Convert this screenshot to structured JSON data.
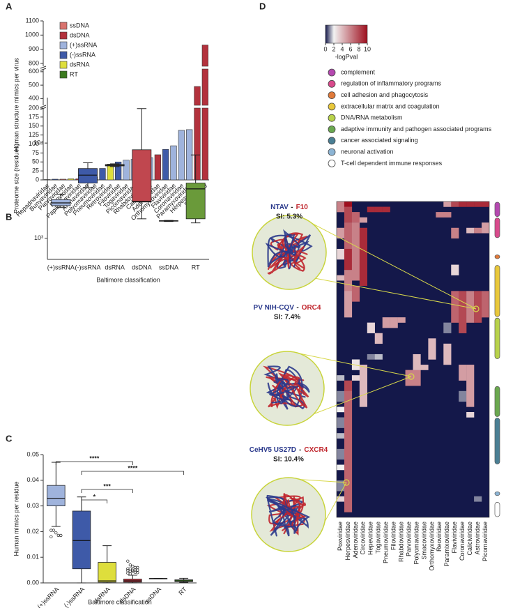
{
  "chart_data": [
    {
      "panel": "A",
      "type": "bar",
      "ylabel": "Human structure mimics per virus",
      "categories": [
        "Hepadnaviridae",
        "Bunyaviridae",
        "Parvoviridae",
        "Reoviridae",
        "Papillomaviridae",
        "Arenaviridae",
        "Polyomaviridae",
        "Pneumoviridae",
        "Retroviridae",
        "Filoviridae",
        "Togaviridae",
        "Picornaviridae",
        "Rhabdoviridae",
        "Caliciviridae",
        "Adenoviridae",
        "Orthomyxoviridae",
        "Flaviviridae",
        "Coronaviridae",
        "Paramyxoviridae",
        "Herpesviridae",
        "Poxviridae"
      ],
      "values": [
        1,
        2,
        2,
        3,
        3,
        5,
        8,
        32,
        44,
        50,
        55,
        57,
        58,
        62,
        70,
        85,
        95,
        138,
        140,
        490,
        930
      ],
      "colors": [
        "#3b7a1f",
        "#3e5aa8",
        "#d9736e",
        "#dede3c",
        "#b3323d",
        "#3e5aa8",
        "#b3323d",
        "#3e5aa8",
        "#dede3c",
        "#3e5aa8",
        "#9fb3dc",
        "#9fb3dc",
        "#3e5aa8",
        "#9fb3dc",
        "#b3323d",
        "#3e5aa8",
        "#9fb3dc",
        "#9fb3dc",
        "#9fb3dc",
        "#b3323d",
        "#b3323d"
      ],
      "legend": [
        {
          "name": "ssDNA",
          "color": "#d9736e"
        },
        {
          "name": "dsDNA",
          "color": "#b3323d"
        },
        {
          "name": "(+)ssRNA",
          "color": "#9fb3dc"
        },
        {
          "name": "(-)ssRNA",
          "color": "#3e5aa8"
        },
        {
          "name": "dsRNA",
          "color": "#dede3c"
        },
        {
          "name": "RT",
          "color": "#3b7a1f"
        }
      ],
      "axis_segments": [
        {
          "ylim": [
            0,
            200
          ],
          "yticks": [
            0,
            25,
            50,
            75,
            100,
            125,
            150,
            175,
            200
          ]
        },
        {
          "ylim": [
            350,
            620
          ],
          "yticks": [
            400,
            500,
            600
          ]
        },
        {
          "ylim": [
            780,
            1100
          ],
          "yticks": [
            800,
            900,
            1000,
            1100
          ]
        }
      ]
    },
    {
      "panel": "B",
      "type": "box",
      "ylabel": "Proteome size (residues)",
      "xlabel": "Baltimore classification",
      "categories": [
        "(+)ssRNA",
        "(-)ssRNA",
        "dsRNA",
        "dsDNA",
        "ssDNA",
        "RT"
      ],
      "colors": [
        "#9fb3dc",
        "#3e5aa8",
        "#c9c9b0",
        "#c0474f",
        "#9a9a9a",
        "#6a9a3a"
      ],
      "log_scale": true,
      "ylim": [
        600,
        30000
      ],
      "yticks": [
        {
          "value": 1000,
          "label": "10³"
        },
        {
          "value": 10000,
          "label": "10⁴"
        }
      ],
      "boxes": [
        {
          "min": 2100,
          "q1": 2200,
          "median": 2350,
          "q3": 2550,
          "max": 2900
        },
        {
          "min": 3400,
          "q1": 3800,
          "median": 4600,
          "q3": 5400,
          "max": 6200
        },
        {
          "min": 5650,
          "q1": 5750,
          "median": 5850,
          "q3": 5950,
          "max": 6050
        },
        {
          "min": 1600,
          "q1": 2400,
          "median": 2450,
          "q3": 8500,
          "max": 23000
        },
        {
          "min": 1500,
          "q1": 1510,
          "median": 1520,
          "q3": 1530,
          "max": 1540
        },
        {
          "min": 1450,
          "q1": 1600,
          "median": 3300,
          "q3": 3800,
          "max": 7500
        }
      ]
    },
    {
      "panel": "C",
      "type": "box",
      "ylabel": "Human mimics per residue",
      "xlabel": "Baltimore classification",
      "categories": [
        "(+)ssRNA",
        "(-)ssRNA",
        "dsRNA",
        "dsDNA",
        "ssDNA",
        "RT"
      ],
      "colors": [
        "#9fb3dc",
        "#3e5aa8",
        "#dede3c",
        "#b3323d",
        "#b3323d",
        "#3b7a1f"
      ],
      "ylim": [
        0,
        0.05
      ],
      "yticks": [
        {
          "value": 0,
          "label": "0.00"
        },
        0.01,
        0.02,
        0.03,
        0.04,
        0.05
      ],
      "boxes": [
        {
          "min": 0.022,
          "q1": 0.03,
          "median": 0.033,
          "q3": 0.038,
          "max": 0.047,
          "outliers": [
            0.0205,
            0.0205,
            0.0195,
            0.0185,
            0.0185,
            0.018
          ]
        },
        {
          "min": 0,
          "q1": 0.0055,
          "median": 0.0165,
          "q3": 0.028,
          "max": 0.0335,
          "outliers": []
        },
        {
          "min": 0,
          "q1": 0.0003,
          "median": 0.0008,
          "q3": 0.008,
          "max": 0.0145,
          "outliers": []
        },
        {
          "min": 0,
          "q1": 0.0003,
          "median": 0.0008,
          "q3": 0.0015,
          "max": 0.003,
          "outliers": [
            0.0085,
            0.007,
            0.0065,
            0.006,
            0.006,
            0.0055,
            0.0055,
            0.005,
            0.005,
            0.005,
            0.0048,
            0.0045,
            0.0045,
            0.0042,
            0.004,
            0.0038,
            0.0035
          ]
        },
        {
          "min": 0.0017,
          "q1": 0.0017,
          "median": 0.0017,
          "q3": 0.0017,
          "max": 0.0017,
          "outliers": []
        },
        {
          "min": 0.0002,
          "q1": 0.0005,
          "median": 0.0008,
          "q3": 0.0012,
          "max": 0.0018,
          "outliers": []
        }
      ],
      "significance": [
        {
          "from": 0,
          "to": 3,
          "label": "****"
        },
        {
          "from": 1,
          "to": 5,
          "label": "****"
        },
        {
          "from": 1,
          "to": 3,
          "label": "***"
        },
        {
          "from": 1,
          "to": 2,
          "label": "*"
        }
      ]
    },
    {
      "panel": "D",
      "type": "heatmap",
      "colorbar_label": "-logPval",
      "clim": [
        0,
        10
      ],
      "cticks": [
        0,
        2,
        4,
        6,
        8,
        10
      ],
      "colorscale": [
        [
          0,
          "#14184a"
        ],
        [
          2,
          "#f2f2f2"
        ],
        [
          10,
          "#9e0f1e"
        ]
      ],
      "columns": [
        "Poxviridae",
        "Herpesviridae",
        "Adenoviridae",
        "Circoviridae",
        "Hepeviridae",
        "Togaviridae",
        "Pneumoviridae",
        "Filoviridae",
        "Rhabdoviridae",
        "Parvoviridae",
        "Polyomaviridae",
        "Smacoviridae",
        "Orthomyxoviridae",
        "Reoviridae",
        "Paramixoviridae",
        "Flaviviridae",
        "Coronaviridae",
        "Caliciviridae",
        "Astroviridae",
        "Picornaviridae"
      ],
      "blocks": [
        [
          0,
          0,
          1,
          6
        ],
        [
          0,
          5,
          6,
          5
        ],
        [
          0,
          9,
          10,
          3
        ],
        [
          0,
          14,
          14,
          4
        ],
        [
          0,
          33,
          33,
          1.5
        ],
        [
          0,
          36,
          37,
          1
        ],
        [
          0,
          39,
          39,
          2
        ],
        [
          0,
          41,
          42,
          1
        ],
        [
          0,
          44,
          44,
          1.5
        ],
        [
          0,
          47,
          48,
          1
        ],
        [
          0,
          50,
          50,
          2
        ],
        [
          0,
          53,
          54,
          1
        ],
        [
          0,
          56,
          56,
          3
        ],
        [
          1,
          0,
          0,
          10
        ],
        [
          1,
          1,
          3,
          8
        ],
        [
          1,
          4,
          8,
          7
        ],
        [
          1,
          9,
          12,
          9
        ],
        [
          1,
          13,
          16,
          6
        ],
        [
          1,
          17,
          21,
          5
        ],
        [
          1,
          34,
          35,
          8
        ],
        [
          1,
          36,
          58,
          7
        ],
        [
          2,
          2,
          3,
          7
        ],
        [
          2,
          4,
          14,
          6
        ],
        [
          2,
          16,
          18,
          7
        ],
        [
          2,
          30,
          31,
          2.5
        ],
        [
          2,
          33,
          33,
          3
        ],
        [
          3,
          3,
          3,
          5
        ],
        [
          3,
          5,
          15,
          9
        ],
        [
          3,
          31,
          38,
          4
        ],
        [
          4,
          1,
          1,
          9
        ],
        [
          5,
          1,
          1,
          9
        ],
        [
          6,
          1,
          1,
          9
        ],
        [
          4,
          23,
          24,
          3
        ],
        [
          4,
          29,
          29,
          1
        ],
        [
          5,
          25,
          26,
          4
        ],
        [
          5,
          29,
          29,
          1.5
        ],
        [
          6,
          22,
          23,
          5
        ],
        [
          7,
          22,
          23,
          5
        ],
        [
          8,
          22,
          22,
          5
        ],
        [
          9,
          32,
          34,
          6
        ],
        [
          10,
          32,
          34,
          6
        ],
        [
          10,
          29,
          31,
          4
        ],
        [
          11,
          31,
          31,
          4
        ],
        [
          12,
          26,
          29,
          4
        ],
        [
          13,
          2,
          2,
          6
        ],
        [
          14,
          2,
          2,
          6
        ],
        [
          14,
          0,
          0,
          5
        ],
        [
          14,
          27,
          30,
          4
        ],
        [
          14,
          23,
          24,
          1
        ],
        [
          15,
          0,
          0,
          8
        ],
        [
          15,
          5,
          6,
          6
        ],
        [
          15,
          12,
          13,
          3
        ],
        [
          15,
          17,
          22,
          7
        ],
        [
          16,
          0,
          0,
          9
        ],
        [
          16,
          17,
          24,
          8
        ],
        [
          16,
          31,
          33,
          5
        ],
        [
          16,
          36,
          37,
          1
        ],
        [
          17,
          0,
          0,
          9
        ],
        [
          17,
          5,
          5,
          4
        ],
        [
          17,
          17,
          22,
          6
        ],
        [
          17,
          31,
          38,
          5
        ],
        [
          17,
          40,
          40,
          3
        ],
        [
          18,
          0,
          0,
          9
        ],
        [
          18,
          5,
          5,
          6
        ],
        [
          18,
          17,
          22,
          8
        ],
        [
          18,
          56,
          56,
          1
        ],
        [
          19,
          0,
          0,
          9
        ],
        [
          19,
          4,
          5,
          5
        ],
        [
          19,
          17,
          21,
          7
        ]
      ],
      "pathways": [
        {
          "name": "complement",
          "color": "#b548b0",
          "rows": [
            0,
            2
          ]
        },
        {
          "name": "regulation of inflammatory programs",
          "color": "#d94a8c",
          "rows": [
            3,
            6
          ]
        },
        {
          "name": "cell adhesion and phagocytosis",
          "color": "#e07a3a",
          "rows": [
            10,
            10
          ]
        },
        {
          "name": "extracellular matrix and coagulation",
          "color": "#e9c83a",
          "rows": [
            12,
            21
          ]
        },
        {
          "name": "DNA/RNA metabolism",
          "color": "#b8d24a",
          "rows": [
            22,
            29
          ]
        },
        {
          "name": "adaptive immunity and pathogen associated programs",
          "color": "#6aa84f",
          "rows": [
            35,
            40
          ]
        },
        {
          "name": "cancer associated signaling",
          "color": "#4a7f94",
          "rows": [
            41,
            49
          ]
        },
        {
          "name": "neuronal activation",
          "color": "#8cb4d4",
          "rows": [
            55,
            55
          ]
        },
        {
          "name": "T-cell dependent immune responses",
          "color": "#ffffff",
          "rows": [
            57,
            59
          ]
        }
      ],
      "callouts": [
        {
          "virus": "NTAV",
          "sep": "-",
          "human": "F10",
          "si": "SI: 5.3%"
        },
        {
          "virus": "PV NIH-CQV",
          "sep": "-",
          "human": "ORC4",
          "si": "SI: 7.4%"
        },
        {
          "virus": "CeHV5  US27D",
          "sep": "-",
          "human": "CXCR4",
          "si": "SI: 10.4%"
        }
      ]
    }
  ]
}
